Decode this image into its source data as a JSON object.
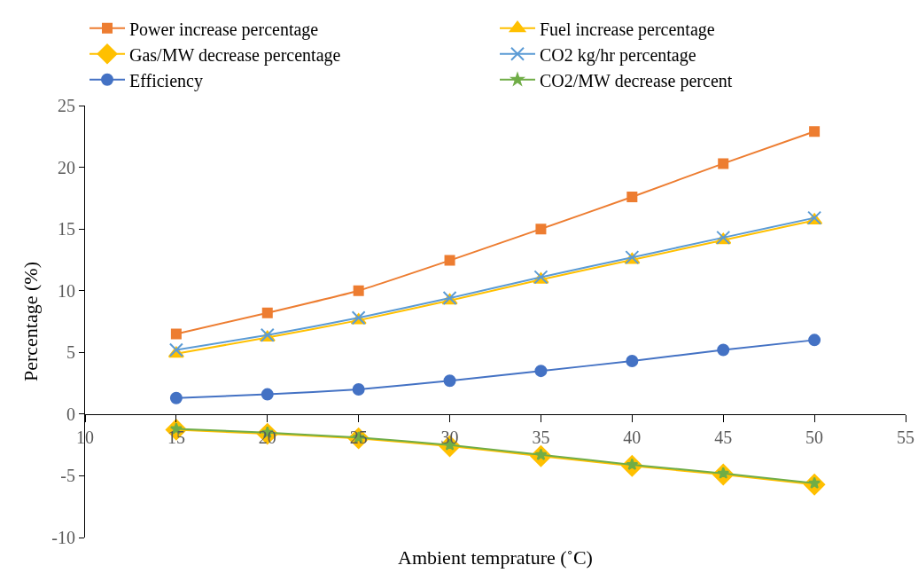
{
  "chart_data": {
    "type": "line",
    "xlabel": "Ambient temprature (˚C)",
    "ylabel": "Percentage (%)",
    "x": [
      15,
      20,
      25,
      30,
      35,
      40,
      45,
      50
    ],
    "xlim": [
      10,
      55
    ],
    "xticks": [
      10,
      15,
      20,
      25,
      30,
      35,
      40,
      45,
      50,
      55
    ],
    "ylim": [
      -10,
      25
    ],
    "yticks": [
      -10,
      -5,
      0,
      5,
      10,
      15,
      20,
      25
    ],
    "grid": false,
    "legend": "top",
    "series": [
      {
        "name": "Power increase percentage",
        "color": "#ed7d31",
        "marker": "square",
        "values": [
          6.5,
          8.2,
          10.0,
          12.45,
          15.0,
          17.6,
          20.3,
          22.9
        ]
      },
      {
        "name": "Fuel increase percentage",
        "color": "#ffc000",
        "marker": "triangle",
        "values": [
          4.9,
          6.2,
          7.6,
          9.2,
          10.9,
          12.5,
          14.1,
          15.7
        ]
      },
      {
        "name": "Gas/MW decrease percentage",
        "color": "#ffc000",
        "marker": "diamond",
        "values": [
          -1.26,
          -1.6,
          -1.96,
          -2.6,
          -3.4,
          -4.2,
          -4.9,
          -5.7
        ]
      },
      {
        "name": "CO2 kg/hr percentage",
        "color": "#5b9bd5",
        "marker": "cross",
        "values": [
          5.2,
          6.4,
          7.8,
          9.4,
          11.1,
          12.7,
          14.3,
          15.9
        ]
      },
      {
        "name": "Efficiency",
        "color": "#4472c4",
        "marker": "circle",
        "values": [
          1.3,
          1.6,
          2.0,
          2.7,
          3.5,
          4.3,
          5.2,
          6.0
        ]
      },
      {
        "name": "CO2/MW decrease percent",
        "color": "#70ad47",
        "marker": "star",
        "values": [
          -1.2,
          -1.5,
          -1.9,
          -2.5,
          -3.3,
          -4.1,
          -4.8,
          -5.6
        ]
      }
    ]
  }
}
